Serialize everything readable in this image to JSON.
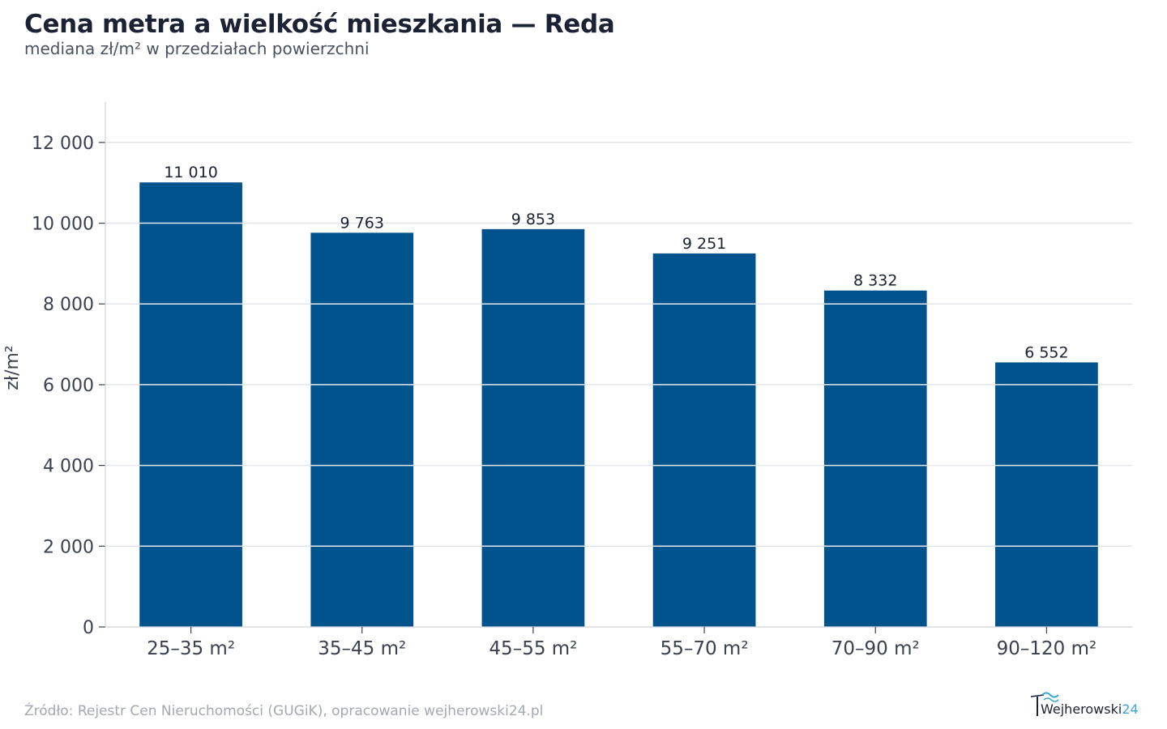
{
  "title": "Cena metra a wielkość mieszkania — Reda",
  "subtitle": "mediana zł/m² w przedziałach powierzchni",
  "source": "Źródło: Rejestr Cen Nieruchomości (GUGiK), opracowanie wejherowski24.pl",
  "logo": {
    "text": "Wejherowski",
    "suffix": "24"
  },
  "colors": {
    "bar": "#00538c",
    "grid": "#e3e6ea",
    "axis": "#d0d4da",
    "text": "#1b2233",
    "tick": "#3b4150"
  },
  "chart_data": {
    "type": "bar",
    "categories": [
      "25–35 m²",
      "35–45 m²",
      "45–55 m²",
      "55–70 m²",
      "70–90 m²",
      "90–120 m²"
    ],
    "values": [
      11010,
      9763,
      9853,
      9251,
      8332,
      6552
    ],
    "value_labels": [
      "11 010",
      "9 763",
      "9 853",
      "9 251",
      "8 332",
      "6 552"
    ],
    "ylabel": "zł/m²",
    "xlabel": "",
    "ylim": [
      0,
      13000
    ],
    "yticks": [
      0,
      2000,
      4000,
      6000,
      8000,
      10000,
      12000
    ],
    "ytick_labels": [
      "0",
      "2 000",
      "4 000",
      "6 000",
      "8 000",
      "10 000",
      "12 000"
    ],
    "grid": true
  }
}
